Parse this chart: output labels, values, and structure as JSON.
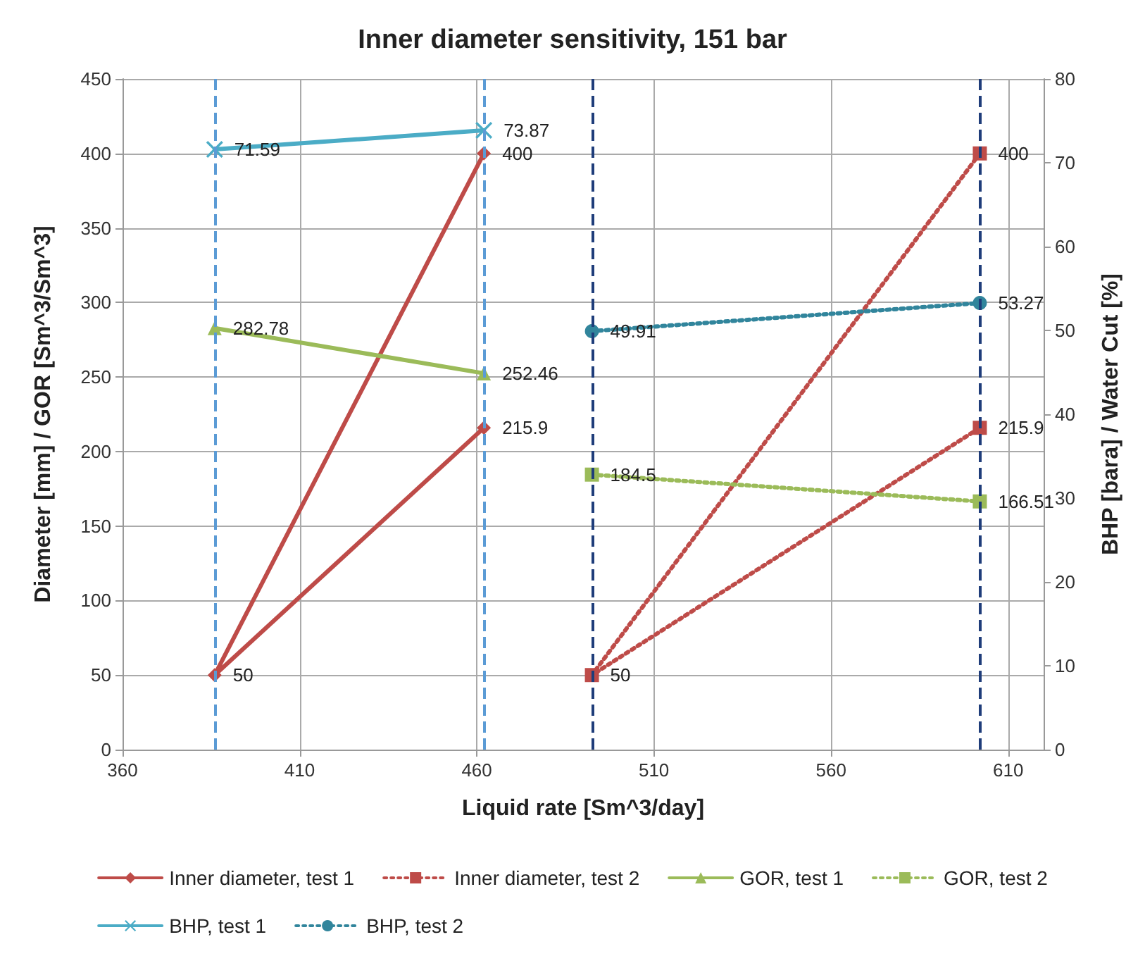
{
  "chart_data": {
    "type": "line",
    "title": "Inner diameter sensitivity, 151 bar",
    "xlabel": "Liquid rate [Sm^3/day]",
    "ylabel": "Diameter [mm] / GOR [Sm^3/Sm^3]",
    "y2label": "BHP [bara] / Water Cut [%]",
    "xlim": [
      360,
      620
    ],
    "xticks": [
      360,
      410,
      460,
      510,
      560,
      610
    ],
    "ylim": [
      0,
      450
    ],
    "yticks": [
      0,
      50,
      100,
      150,
      200,
      250,
      300,
      350,
      400,
      450
    ],
    "y2lim": [
      0,
      80
    ],
    "y2ticks": [
      0,
      10,
      20,
      30,
      40,
      50,
      60,
      70,
      80
    ],
    "grid": true,
    "legend": "bottom",
    "data_labels": true,
    "series": [
      {
        "name": "Inner diameter, test 1",
        "color": "#be4b48",
        "x": [
          462,
          386,
          462
        ],
        "values": [
          400,
          50,
          215.9
        ],
        "marker": "diamond",
        "line_style": "solid"
      },
      {
        "name": "Inner diameter, test 2",
        "color": "#be4b48",
        "x": [
          602,
          492.5,
          602
        ],
        "values": [
          400,
          50,
          215.9
        ],
        "marker": "square",
        "line_style": "dotted"
      },
      {
        "name": "GOR, test 1",
        "color": "#9bbb59",
        "x": [
          386,
          462
        ],
        "values": [
          282.78,
          252.46
        ],
        "marker": "triangle",
        "line_style": "solid"
      },
      {
        "name": "GOR, test 2",
        "color": "#9bbb59",
        "x": [
          492.5,
          602
        ],
        "values": [
          184.5,
          166.51
        ],
        "marker": "square",
        "line_style": "dotted"
      },
      {
        "name": "BHP, test 1",
        "color": "#4bacc6",
        "x": [
          386,
          462
        ],
        "values": [
          71.59,
          73.87
        ],
        "marker": "cross",
        "line_style": "solid",
        "axis": "y2"
      },
      {
        "name": "BHP, test 2",
        "color": "#31859c",
        "x": [
          492.5,
          602
        ],
        "values": [
          49.91,
          53.27
        ],
        "marker": "circle",
        "line_style": "dotted",
        "axis": "y2"
      }
    ],
    "ref_lines": [
      {
        "axis": "x",
        "value": 386,
        "color": "#5b9bd5",
        "line_style": "dashed"
      },
      {
        "axis": "x",
        "value": 462,
        "color": "#5b9bd5",
        "line_style": "dashed"
      },
      {
        "axis": "x",
        "value": 492.5,
        "color": "#1f3d7a",
        "line_style": "dashed"
      },
      {
        "axis": "x",
        "value": 602,
        "color": "#1f3d7a",
        "line_style": "dashed"
      }
    ]
  }
}
